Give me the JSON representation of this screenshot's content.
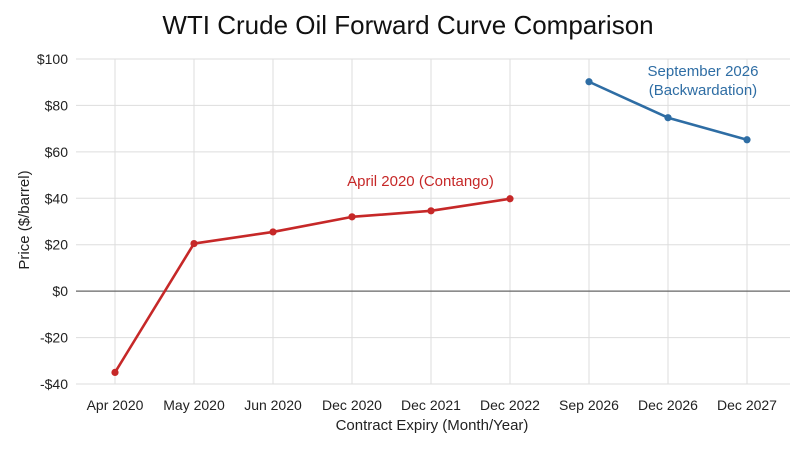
{
  "chart_data": {
    "type": "line",
    "title": "WTI Crude Oil Forward Curve Comparison",
    "xlabel": "Contract Expiry (Month/Year)",
    "ylabel": "Price ($/barrel)",
    "categories": [
      "Apr 2020",
      "May 2020",
      "Jun 2020",
      "Dec 2020",
      "Dec 2021",
      "Dec 2022",
      "Sep 2026",
      "Dec 2026",
      "Dec 2027"
    ],
    "ylim": [
      -40,
      100
    ],
    "yticks": [
      -40,
      -20,
      0,
      20,
      40,
      60,
      80,
      100
    ],
    "ytick_labels": [
      "-$40",
      "-$20",
      "$0",
      "$20",
      "$40",
      "$60",
      "$80",
      "$100"
    ],
    "grid": true,
    "legend": "none",
    "series": [
      {
        "name": "April 2020 (Contango)",
        "color": "#c62828",
        "label_lines": [
          "April 2020 (Contango)"
        ],
        "values": [
          -35,
          20.5,
          25.5,
          32,
          34.6,
          39.8,
          null,
          null,
          null
        ]
      },
      {
        "name": "September 2026 (Backwardation)",
        "color": "#2e6da4",
        "label_lines": [
          "September 2026",
          "(Backwardation)"
        ],
        "values": [
          null,
          null,
          null,
          null,
          null,
          null,
          90.2,
          74.7,
          65.2
        ]
      }
    ]
  }
}
